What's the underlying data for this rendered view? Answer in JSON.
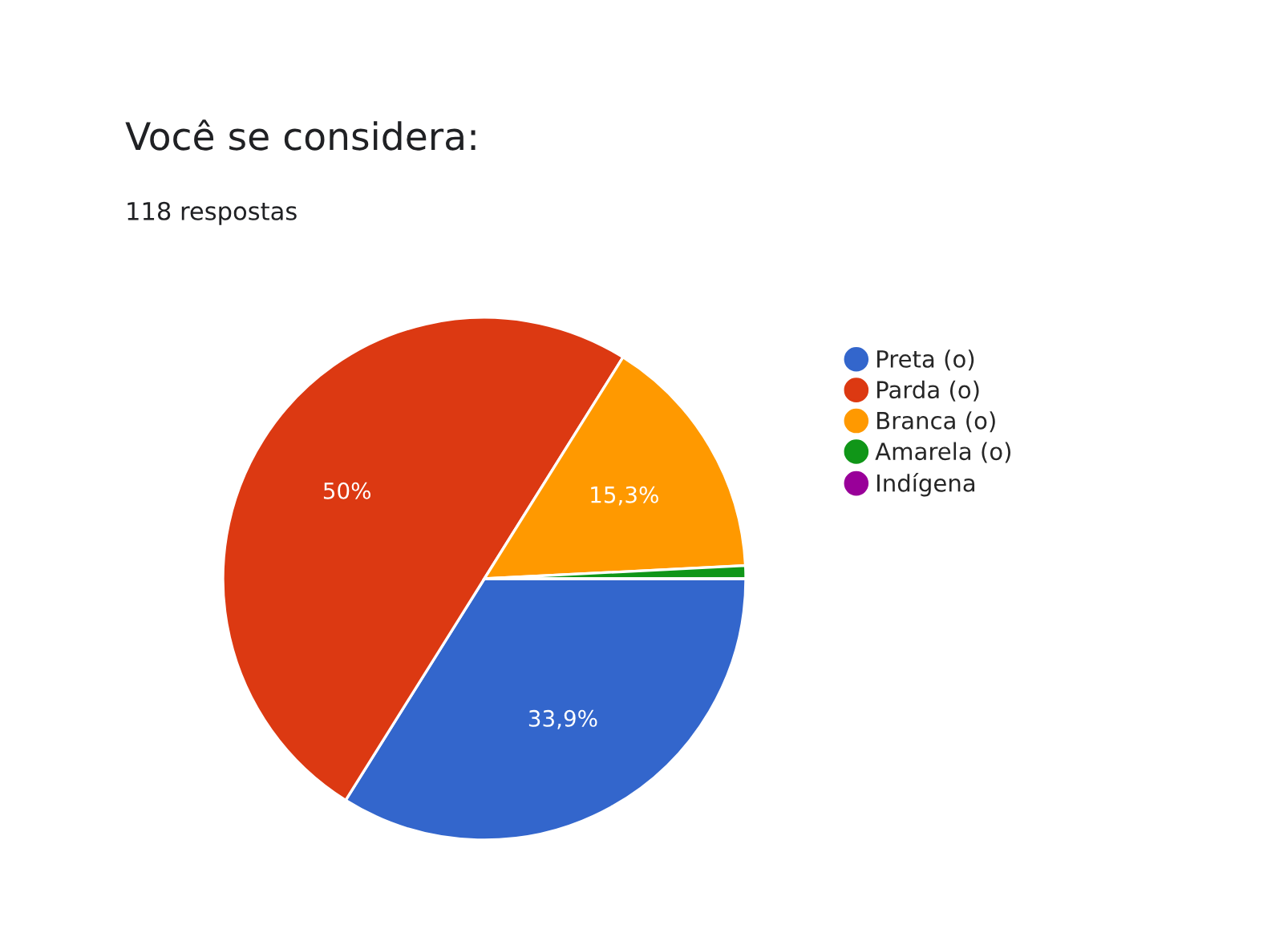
{
  "chart_data": {
    "type": "pie",
    "title": "Você se considera:",
    "subtitle": "118 respostas",
    "categories": [
      "Preta (o)",
      "Parda (o)",
      "Branca (o)",
      "Amarela (o)",
      "Indígena"
    ],
    "values": [
      33.9,
      50,
      15.3,
      0.8,
      0
    ],
    "colors": [
      "#3366cc",
      "#dc3912",
      "#ff9900",
      "#109618",
      "#990099"
    ],
    "value_labels": [
      "33,9%",
      "50%",
      "15,3%",
      null,
      null
    ],
    "legend": "top right"
  }
}
